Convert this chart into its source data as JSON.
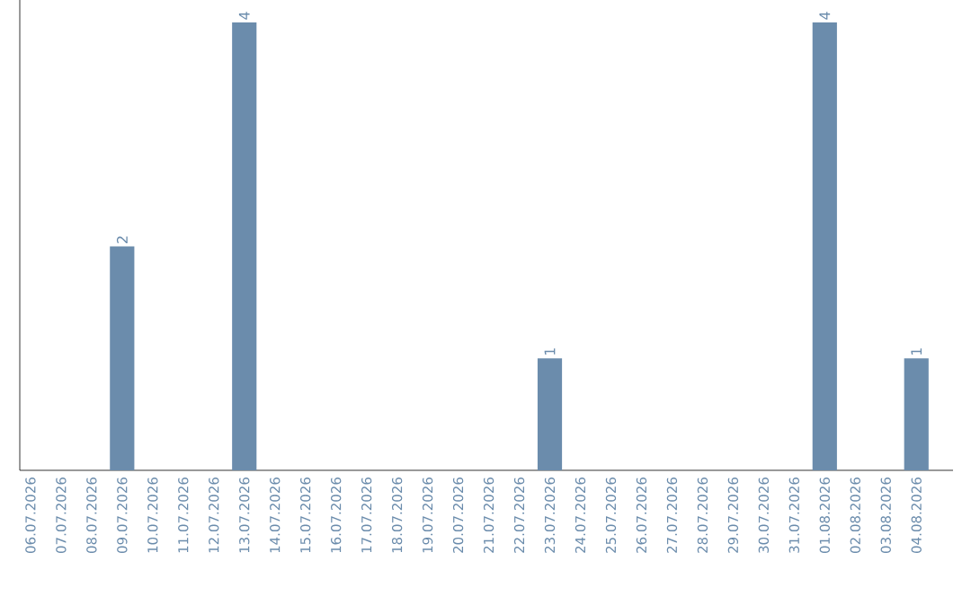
{
  "chart_data": {
    "type": "bar",
    "categories": [
      "06.07.2026",
      "07.07.2026",
      "08.07.2026",
      "09.07.2026",
      "10.07.2026",
      "11.07.2026",
      "12.07.2026",
      "13.07.2026",
      "14.07.2026",
      "15.07.2026",
      "16.07.2026",
      "17.07.2026",
      "18.07.2026",
      "19.07.2026",
      "20.07.2026",
      "21.07.2026",
      "22.07.2026",
      "23.07.2026",
      "24.07.2026",
      "25.07.2026",
      "26.07.2026",
      "27.07.2026",
      "28.07.2026",
      "29.07.2026",
      "30.07.2026",
      "31.07.2026",
      "01.08.2026",
      "02.08.2026",
      "03.08.2026",
      "04.08.2026"
    ],
    "values": [
      0,
      0,
      0,
      2,
      0,
      0,
      0,
      4,
      0,
      0,
      0,
      0,
      0,
      0,
      0,
      0,
      0,
      1,
      0,
      0,
      0,
      0,
      0,
      0,
      0,
      0,
      4,
      0,
      0,
      1
    ],
    "value_labels": [
      null,
      null,
      null,
      "2",
      null,
      null,
      null,
      "4",
      null,
      null,
      null,
      null,
      null,
      null,
      null,
      null,
      null,
      "1",
      null,
      null,
      null,
      null,
      null,
      null,
      null,
      null,
      "4",
      null,
      null,
      "1"
    ],
    "color": "#6b8cac"
  }
}
